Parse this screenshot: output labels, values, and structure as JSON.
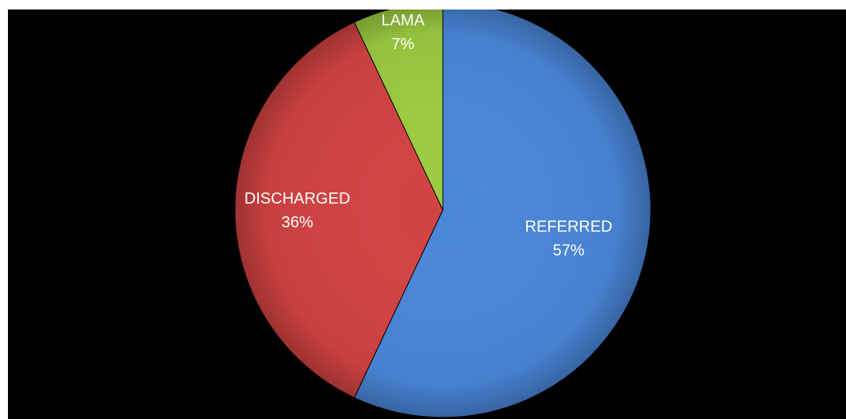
{
  "chart_data": {
    "type": "pie",
    "title": "",
    "start_angle_deg": 0,
    "direction": "clockwise",
    "slices": [
      {
        "label": "REFERRED",
        "value": 57,
        "value_label": "57%",
        "color": "#4a86d8"
      },
      {
        "label": "DISCHARGED",
        "value": 36,
        "value_label": "36%",
        "color": "#d24343"
      },
      {
        "label": "LAMA",
        "value": 7,
        "value_label": "7%",
        "color": "#9ccc41"
      }
    ],
    "background": "#000000",
    "label_color": "#ffffff"
  }
}
